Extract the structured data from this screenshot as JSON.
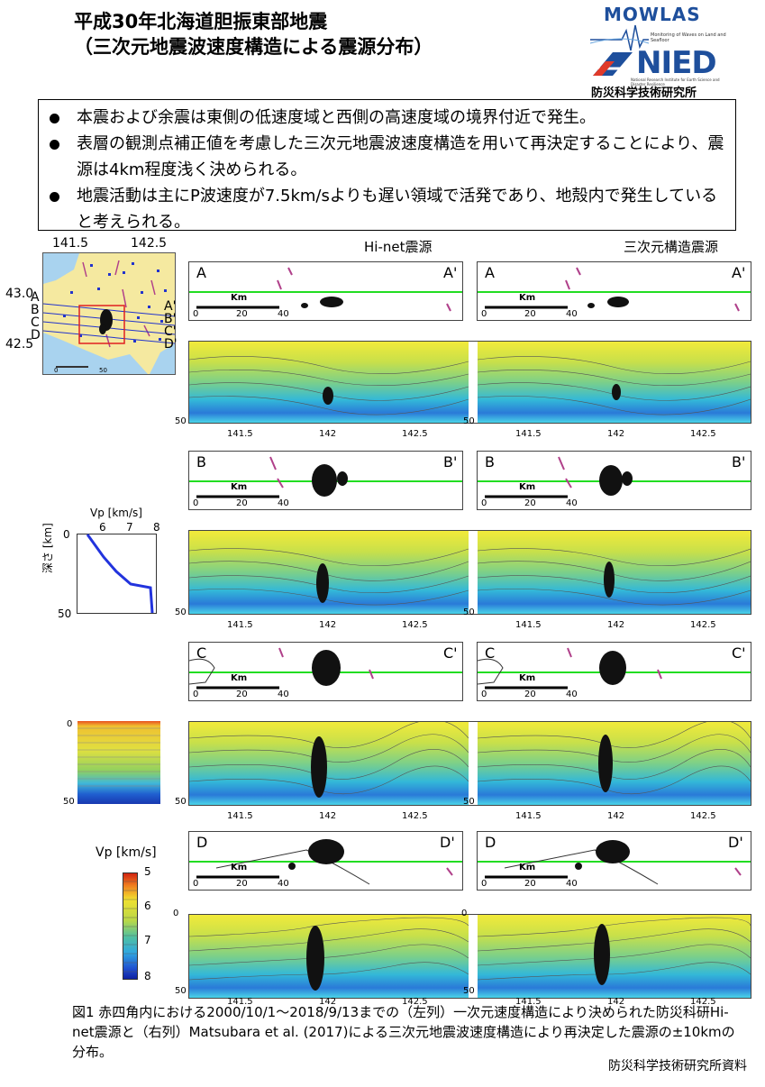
{
  "title": {
    "line1": "平成30年北海道胆振東部地震",
    "line2": "（三次元地震波速度構造による震源分布）"
  },
  "logo": {
    "mowlas": "MOWLAS",
    "mowlas_sub": "Monitoring of Waves on Land and Seafloor",
    "nied": "NIED",
    "nied_sub": "National Research Institute for Earth Science and Disaster Resilience",
    "org": "防災科学技術研究所"
  },
  "bullets": [
    "本震および余震は東側の低速度域と西側の高速度域の境界付近で発生。",
    "表層の観測点補正値を考慮した三次元地震波速度構造を用いて再決定することにより、震源は4km程度浅く決められる。",
    "地震活動は主にP波速度が7.5km/sよりも遅い領域で活発であり、地殻内で発生していると考えられる。"
  ],
  "map": {
    "lon_labels": [
      "141.5",
      "142.5"
    ],
    "lat_labels": [
      "43.0",
      "42.5"
    ],
    "profile_letters": [
      "A",
      "B",
      "C",
      "D"
    ],
    "profile_letters_end": [
      "A'",
      "B'",
      "C'",
      "D'"
    ],
    "scale": [
      "0",
      "50"
    ]
  },
  "columns": {
    "left": "Hi-net震源",
    "right": "三次元構造震源"
  },
  "sections": [
    {
      "start": "A",
      "end": "A'"
    },
    {
      "start": "B",
      "end": "B'"
    },
    {
      "start": "C",
      "end": "C'"
    },
    {
      "start": "D",
      "end": "D'"
    }
  ],
  "section_scale": {
    "unit": "Km",
    "ticks": [
      "0",
      "20",
      "40"
    ]
  },
  "depth_axis": {
    "top": "0",
    "bottom": "50"
  },
  "lon_ticks": [
    "141.5",
    "142",
    "142.5"
  ],
  "vp_profile": {
    "xlabel": "Vp [km/s]",
    "xticks": [
      "6",
      "7",
      "8"
    ],
    "ylabel": "深さ [km]",
    "yticks": [
      "0",
      "50"
    ]
  },
  "gradient_panel": {
    "yticks": [
      "0",
      "50"
    ]
  },
  "colorbar": {
    "label": "Vp [km/s]",
    "ticks": [
      "5",
      "6",
      "7",
      "8"
    ]
  },
  "caption": "図1 赤四角内における2000/10/1〜2018/9/13までの（左列）一次元速度構造により決められた防災科研Hi-net震源と（右列）Matsubara et al. (2017)による三次元地震波速度構造により再決定した震源の±10kmの分布。",
  "source": "防災科学技術研究所資料",
  "colors": {
    "green_line": "#22dd22",
    "station": "#2233cc",
    "fault": "#b0408a"
  }
}
